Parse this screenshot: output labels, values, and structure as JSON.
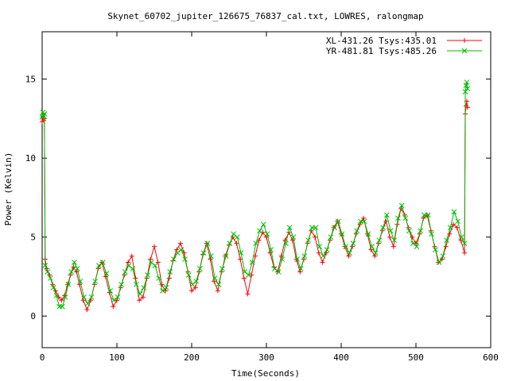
{
  "chart_data": {
    "type": "scatter",
    "title": "Skynet_60702_jupiter_126675_76837_cal.txt, LOWRES, ralongmap",
    "xlabel": "Time(Seconds)",
    "ylabel": "Power (Kelvin)",
    "xlim": [
      0,
      600
    ],
    "ylim": [
      -2,
      18
    ],
    "xticks": [
      0,
      100,
      200,
      300,
      400,
      500,
      600
    ],
    "yticks": [
      0,
      5,
      10,
      15
    ],
    "grid": false,
    "legend_position": "top-right",
    "series": [
      {
        "name": "XL-431.26 Tsys:435.01",
        "color": "#ff0000",
        "marker": "plus",
        "points": [
          [
            0,
            12.3
          ],
          [
            1,
            12.6
          ],
          [
            2,
            12.4
          ],
          [
            3,
            12.5
          ],
          [
            4,
            3.6
          ],
          [
            6,
            3.0
          ],
          [
            10,
            2.6
          ],
          [
            14,
            2.0
          ],
          [
            18,
            1.6
          ],
          [
            22,
            1.2
          ],
          [
            26,
            1.0
          ],
          [
            30,
            1.3
          ],
          [
            34,
            2.0
          ],
          [
            38,
            2.6
          ],
          [
            42,
            3.1
          ],
          [
            46,
            2.8
          ],
          [
            50,
            2.0
          ],
          [
            55,
            1.0
          ],
          [
            60,
            0.4
          ],
          [
            65,
            1.0
          ],
          [
            70,
            2.0
          ],
          [
            75,
            3.0
          ],
          [
            80,
            3.4
          ],
          [
            85,
            2.5
          ],
          [
            90,
            1.5
          ],
          [
            95,
            0.6
          ],
          [
            100,
            1.0
          ],
          [
            105,
            1.8
          ],
          [
            110,
            2.6
          ],
          [
            115,
            3.4
          ],
          [
            120,
            3.8
          ],
          [
            125,
            2.4
          ],
          [
            130,
            1.0
          ],
          [
            135,
            1.2
          ],
          [
            140,
            2.4
          ],
          [
            145,
            3.6
          ],
          [
            150,
            4.4
          ],
          [
            155,
            3.4
          ],
          [
            160,
            2.0
          ],
          [
            165,
            1.6
          ],
          [
            170,
            2.4
          ],
          [
            175,
            3.5
          ],
          [
            180,
            4.2
          ],
          [
            185,
            4.6
          ],
          [
            190,
            4.0
          ],
          [
            195,
            2.8
          ],
          [
            200,
            1.6
          ],
          [
            205,
            1.8
          ],
          [
            210,
            2.8
          ],
          [
            215,
            3.9
          ],
          [
            220,
            4.6
          ],
          [
            225,
            3.6
          ],
          [
            230,
            2.2
          ],
          [
            235,
            1.6
          ],
          [
            240,
            2.8
          ],
          [
            245,
            3.8
          ],
          [
            250,
            4.5
          ],
          [
            255,
            5.0
          ],
          [
            260,
            4.6
          ],
          [
            265,
            3.6
          ],
          [
            270,
            2.4
          ],
          [
            275,
            1.4
          ],
          [
            280,
            2.6
          ],
          [
            285,
            3.8
          ],
          [
            290,
            4.8
          ],
          [
            295,
            5.3
          ],
          [
            300,
            5.0
          ],
          [
            305,
            4.0
          ],
          [
            310,
            3.1
          ],
          [
            315,
            2.8
          ],
          [
            320,
            3.8
          ],
          [
            325,
            4.8
          ],
          [
            330,
            5.3
          ],
          [
            335,
            4.8
          ],
          [
            340,
            3.6
          ],
          [
            345,
            2.8
          ],
          [
            350,
            3.6
          ],
          [
            355,
            4.6
          ],
          [
            360,
            5.4
          ],
          [
            365,
            5.0
          ],
          [
            370,
            4.0
          ],
          [
            375,
            3.4
          ],
          [
            380,
            4.0
          ],
          [
            385,
            4.8
          ],
          [
            390,
            5.6
          ],
          [
            395,
            6.0
          ],
          [
            400,
            5.2
          ],
          [
            405,
            4.4
          ],
          [
            410,
            3.8
          ],
          [
            415,
            4.4
          ],
          [
            420,
            5.2
          ],
          [
            425,
            5.8
          ],
          [
            430,
            6.2
          ],
          [
            435,
            5.2
          ],
          [
            440,
            4.2
          ],
          [
            445,
            3.8
          ],
          [
            450,
            4.6
          ],
          [
            455,
            5.4
          ],
          [
            460,
            6.0
          ],
          [
            465,
            5.0
          ],
          [
            470,
            4.4
          ],
          [
            475,
            5.8
          ],
          [
            480,
            6.8
          ],
          [
            485,
            6.4
          ],
          [
            490,
            5.6
          ],
          [
            495,
            5.0
          ],
          [
            500,
            4.6
          ],
          [
            505,
            5.2
          ],
          [
            510,
            6.2
          ],
          [
            515,
            6.4
          ],
          [
            520,
            5.4
          ],
          [
            525,
            4.4
          ],
          [
            530,
            3.4
          ],
          [
            535,
            3.6
          ],
          [
            540,
            4.4
          ],
          [
            545,
            5.2
          ],
          [
            550,
            5.8
          ],
          [
            555,
            5.6
          ],
          [
            560,
            4.8
          ],
          [
            565,
            4.0
          ],
          [
            566,
            12.8
          ],
          [
            567,
            13.3
          ],
          [
            568,
            13.6
          ],
          [
            569,
            13.2
          ]
        ]
      },
      {
        "name": "YR-481.81 Tsys:485.26",
        "color": "#00bb00",
        "marker": "cross",
        "points": [
          [
            0,
            12.6
          ],
          [
            1,
            12.9
          ],
          [
            2,
            12.7
          ],
          [
            3,
            12.8
          ],
          [
            4,
            3.2
          ],
          [
            7,
            2.8
          ],
          [
            11,
            2.4
          ],
          [
            15,
            1.8
          ],
          [
            19,
            1.3
          ],
          [
            23,
            0.6
          ],
          [
            27,
            0.6
          ],
          [
            31,
            1.2
          ],
          [
            35,
            2.0
          ],
          [
            39,
            2.8
          ],
          [
            43,
            3.4
          ],
          [
            47,
            3.0
          ],
          [
            51,
            2.2
          ],
          [
            56,
            1.2
          ],
          [
            61,
            0.8
          ],
          [
            66,
            1.2
          ],
          [
            71,
            2.2
          ],
          [
            76,
            3.2
          ],
          [
            81,
            3.4
          ],
          [
            86,
            2.7
          ],
          [
            91,
            1.6
          ],
          [
            96,
            1.0
          ],
          [
            101,
            1.2
          ],
          [
            106,
            2.0
          ],
          [
            111,
            2.8
          ],
          [
            116,
            3.2
          ],
          [
            121,
            3.0
          ],
          [
            126,
            2.0
          ],
          [
            131,
            1.4
          ],
          [
            136,
            1.8
          ],
          [
            141,
            2.6
          ],
          [
            146,
            3.4
          ],
          [
            151,
            3.2
          ],
          [
            156,
            2.4
          ],
          [
            161,
            1.6
          ],
          [
            166,
            1.8
          ],
          [
            171,
            2.8
          ],
          [
            176,
            3.6
          ],
          [
            181,
            4.0
          ],
          [
            186,
            4.2
          ],
          [
            191,
            3.6
          ],
          [
            196,
            2.6
          ],
          [
            201,
            2.0
          ],
          [
            206,
            2.2
          ],
          [
            211,
            3.0
          ],
          [
            216,
            4.0
          ],
          [
            221,
            4.6
          ],
          [
            226,
            3.8
          ],
          [
            231,
            2.4
          ],
          [
            236,
            2.0
          ],
          [
            241,
            3.0
          ],
          [
            246,
            3.8
          ],
          [
            251,
            4.6
          ],
          [
            256,
            5.2
          ],
          [
            261,
            5.0
          ],
          [
            266,
            4.0
          ],
          [
            271,
            2.8
          ],
          [
            276,
            2.6
          ],
          [
            281,
            3.4
          ],
          [
            286,
            4.6
          ],
          [
            291,
            5.4
          ],
          [
            296,
            5.8
          ],
          [
            301,
            5.2
          ],
          [
            306,
            4.2
          ],
          [
            311,
            3.0
          ],
          [
            316,
            2.8
          ],
          [
            321,
            3.6
          ],
          [
            326,
            4.6
          ],
          [
            331,
            5.6
          ],
          [
            336,
            5.0
          ],
          [
            341,
            3.6
          ],
          [
            346,
            3.0
          ],
          [
            351,
            3.8
          ],
          [
            356,
            4.8
          ],
          [
            361,
            5.6
          ],
          [
            366,
            5.6
          ],
          [
            371,
            4.4
          ],
          [
            376,
            3.8
          ],
          [
            381,
            4.2
          ],
          [
            386,
            5.0
          ],
          [
            391,
            5.6
          ],
          [
            396,
            6.0
          ],
          [
            401,
            5.2
          ],
          [
            406,
            4.4
          ],
          [
            411,
            4.0
          ],
          [
            416,
            4.6
          ],
          [
            421,
            5.4
          ],
          [
            426,
            6.0
          ],
          [
            431,
            6.0
          ],
          [
            436,
            5.2
          ],
          [
            441,
            4.4
          ],
          [
            446,
            4.0
          ],
          [
            451,
            4.8
          ],
          [
            456,
            5.6
          ],
          [
            461,
            6.4
          ],
          [
            466,
            5.4
          ],
          [
            471,
            4.8
          ],
          [
            476,
            6.2
          ],
          [
            481,
            7.0
          ],
          [
            486,
            6.2
          ],
          [
            491,
            5.4
          ],
          [
            496,
            4.6
          ],
          [
            501,
            4.4
          ],
          [
            506,
            5.4
          ],
          [
            511,
            6.4
          ],
          [
            516,
            6.4
          ],
          [
            521,
            5.2
          ],
          [
            526,
            4.2
          ],
          [
            531,
            3.4
          ],
          [
            536,
            3.8
          ],
          [
            541,
            4.8
          ],
          [
            546,
            5.6
          ],
          [
            551,
            6.6
          ],
          [
            556,
            6.0
          ],
          [
            561,
            5.0
          ],
          [
            565,
            4.6
          ],
          [
            566,
            14.2
          ],
          [
            567,
            14.6
          ],
          [
            568,
            14.8
          ],
          [
            569,
            14.4
          ]
        ]
      }
    ]
  }
}
